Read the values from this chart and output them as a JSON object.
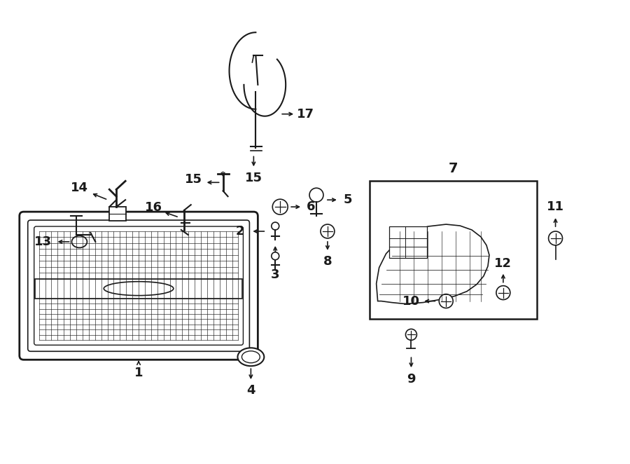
{
  "bg_color": "#ffffff",
  "line_color": "#1a1a1a",
  "text_color": "#1a1a1a",
  "fig_width": 9.0,
  "fig_height": 6.62,
  "dpi": 100
}
